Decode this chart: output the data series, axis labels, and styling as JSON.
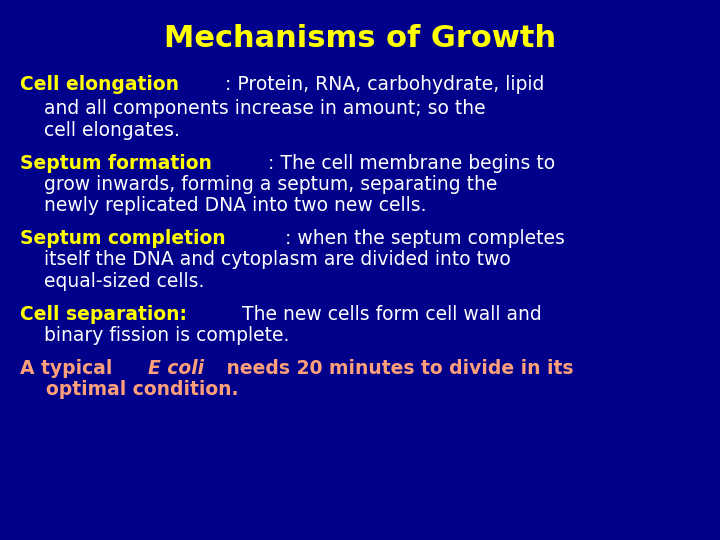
{
  "title": "Mechanisms of Growth",
  "title_color": "#FFFF00",
  "background_color": "#00008B",
  "title_fontsize": 22,
  "body_fontsize": 13.5,
  "lines": [
    [
      {
        "text": "Cell elongation",
        "color": "#FFFF00",
        "bold": true,
        "italic": false
      },
      {
        "text": ": Protein, RNA, carbohydrate, lipid",
        "color": "#FFFFFF",
        "bold": false,
        "italic": false
      }
    ],
    [
      {
        "text": "    and all components increase in amount; so the",
        "color": "#FFFFFF",
        "bold": false,
        "italic": false
      }
    ],
    [
      {
        "text": "    cell elongates.",
        "color": "#FFFFFF",
        "bold": false,
        "italic": false
      }
    ],
    [
      {
        "text": "Septum formation",
        "color": "#FFFF00",
        "bold": true,
        "italic": false
      },
      {
        "text": ": The cell membrane begins to",
        "color": "#FFFFFF",
        "bold": false,
        "italic": false
      }
    ],
    [
      {
        "text": "    grow inwards, forming a septum, separating the",
        "color": "#FFFFFF",
        "bold": false,
        "italic": false
      }
    ],
    [
      {
        "text": "    newly replicated DNA into two new cells.",
        "color": "#FFFFFF",
        "bold": false,
        "italic": false
      }
    ],
    [
      {
        "text": "Septum completion",
        "color": "#FFFF00",
        "bold": true,
        "italic": false
      },
      {
        "text": ": when the septum completes",
        "color": "#FFFFFF",
        "bold": false,
        "italic": false
      }
    ],
    [
      {
        "text": "    itself the DNA and cytoplasm are divided into two",
        "color": "#FFFFFF",
        "bold": false,
        "italic": false
      }
    ],
    [
      {
        "text": "    equal-sized cells.",
        "color": "#FFFFFF",
        "bold": false,
        "italic": false
      }
    ],
    [
      {
        "text": "Cell separation:",
        "color": "#FFFF00",
        "bold": true,
        "italic": false
      },
      {
        "text": " The new cells form cell wall and",
        "color": "#FFFFFF",
        "bold": false,
        "italic": false
      }
    ],
    [
      {
        "text": "    binary fission is complete.",
        "color": "#FFFFFF",
        "bold": false,
        "italic": false
      }
    ],
    [
      {
        "text": "A typical ",
        "color": "#FFA07A",
        "bold": true,
        "italic": false
      },
      {
        "text": "E coli",
        "color": "#FFA07A",
        "bold": true,
        "italic": true
      },
      {
        "text": " needs 20 minutes to divide in its",
        "color": "#FFA07A",
        "bold": true,
        "italic": false
      }
    ],
    [
      {
        "text": "    optimal condition.",
        "color": "#FFA07A",
        "bold": true,
        "italic": false
      }
    ]
  ],
  "line_gap_after": [
    2,
    0,
    1,
    0,
    0,
    1,
    0,
    0,
    1,
    0,
    1,
    0,
    0
  ]
}
